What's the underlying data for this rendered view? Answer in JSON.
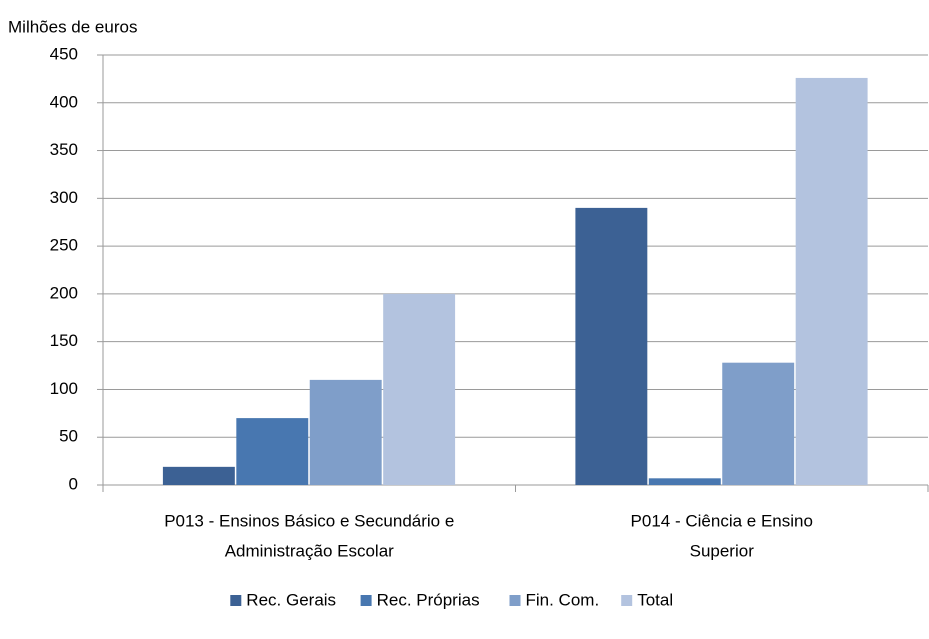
{
  "chart_data": {
    "type": "bar",
    "y_axis_label": "Milhões de euros",
    "categories": [
      [
        "P013 - Ensinos Básico e Secundário e",
        "Administração Escolar"
      ],
      [
        "P014  - Ciência e Ensino",
        "Superior"
      ]
    ],
    "series": [
      {
        "name": "Rec. Gerais",
        "color": "#3c6194",
        "values": [
          19,
          290
        ]
      },
      {
        "name": "Rec. Próprias",
        "color": "#4877b0",
        "values": [
          70,
          7
        ]
      },
      {
        "name": "Fin. Com.",
        "color": "#7f9ec9",
        "values": [
          110,
          128
        ]
      },
      {
        "name": "Total",
        "color": "#b3c3df",
        "values": [
          200,
          426
        ]
      }
    ],
    "ylim": [
      0,
      450
    ],
    "yticks": [
      0,
      50,
      100,
      150,
      200,
      250,
      300,
      350,
      400,
      450
    ],
    "grid": true,
    "legend": "bottom"
  }
}
